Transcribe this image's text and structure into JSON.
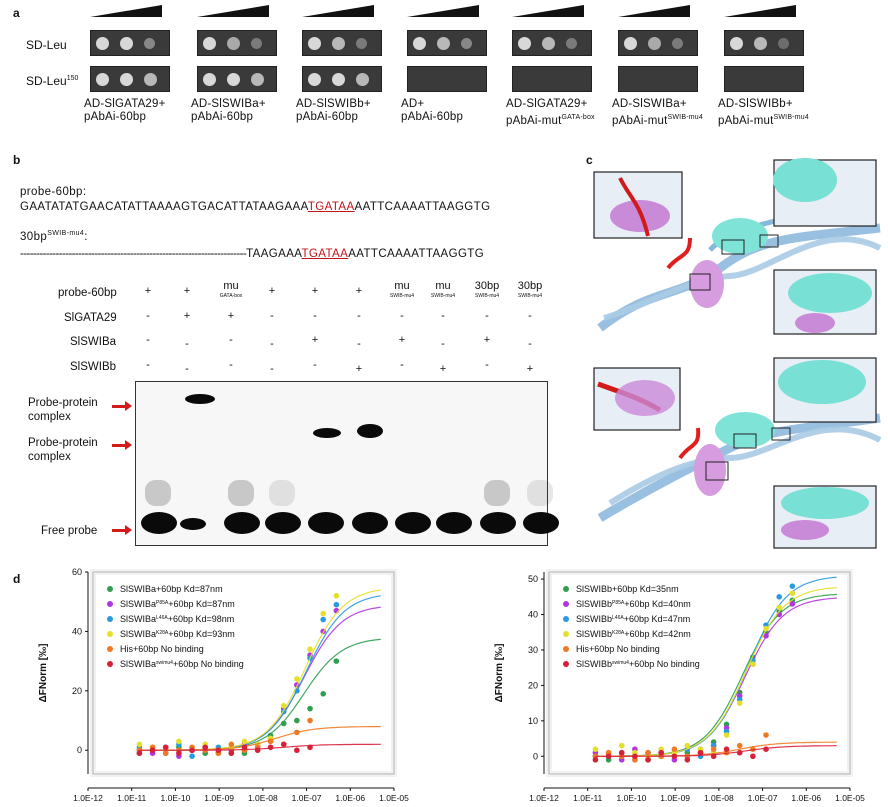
{
  "panel_a": {
    "letter": "a",
    "rows": [
      "SD-Leu",
      "SD-Leu"
    ],
    "row2_sup": "150",
    "columns": [
      {
        "line1": "AD-SlGATA29+",
        "line2": "pAbAi-60bp",
        "sup": ""
      },
      {
        "line1": "AD-SlSWIBa+",
        "line2": "pAbAi-60bp",
        "sup": ""
      },
      {
        "line1": "AD-SlSWIBb+",
        "line2": "pAbAi-60bp",
        "sup": ""
      },
      {
        "line1": "AD+",
        "line2": "pAbAi-60bp",
        "sup": ""
      },
      {
        "line1": "AD-SlGATA29+",
        "line2": "pAbAi-mut",
        "sup": "GATA-box"
      },
      {
        "line1": "AD-SlSWIBa+",
        "line2": "pAbAi-mut",
        "sup": "SWIB-mu4"
      },
      {
        "line1": "AD-SlSWIBb+",
        "line2": "pAbAi-mut",
        "sup": "SWIB-mu4"
      }
    ]
  },
  "panel_b": {
    "letter": "b",
    "probe_label": "probe-60bp:",
    "probe_seq_pre": "GAATATATGAACATATTAAAAGTGACATTATAAGAAA",
    "probe_seq_motif": "TGATAA",
    "probe_seq_post": "AATTCAAAATTAAGGTG",
    "probe2_label_base": "30bp",
    "probe2_label_sup": "SWIB-mu4",
    "probe2_label_end": ":",
    "probe2_dashes": "----------------------------------------------------------------------",
    "probe2_seq_pre": "TAAGAAA",
    "probe2_seq_motif": "TGATAA",
    "probe2_seq_post": "AATTCAAAATTAAGGTG",
    "emsa_rows": [
      "probe-60bp",
      "SlGATA29",
      "SlSWIBa",
      "SlSWIBb"
    ],
    "lane_headers": [
      {
        "main": "+",
        "sub": ""
      },
      {
        "main": "+",
        "sub": ""
      },
      {
        "main": "mu",
        "sub": "GATA-box"
      },
      {
        "main": "+",
        "sub": ""
      },
      {
        "main": "+",
        "sub": ""
      },
      {
        "main": "+",
        "sub": ""
      },
      {
        "main": "mu",
        "sub": "SWIB-mu4"
      },
      {
        "main": "mu",
        "sub": "SWIB-mu4"
      },
      {
        "main": "30bp",
        "sub": "SWIB-mu4"
      },
      {
        "main": "30bp",
        "sub": "SWIB-mu4"
      }
    ],
    "gata29_signs": [
      "-",
      "+",
      "+",
      "-",
      "-",
      "-",
      "-",
      "-",
      "-",
      "-"
    ],
    "swiba_signs": [
      "-",
      "-",
      "-",
      "-",
      "+",
      "-",
      "+",
      "-",
      "+",
      "-"
    ],
    "swibb_signs": [
      "-",
      "-",
      "-",
      "-",
      "-",
      "+",
      "-",
      "+",
      "-",
      "+"
    ],
    "band_labels": {
      "complex1_line1": "Probe-protein",
      "complex1_line2": "complex",
      "complex2_line1": "Probe-protein",
      "complex2_line2": "complex",
      "free": "Free probe"
    }
  },
  "panel_c": {
    "letter": "c"
  },
  "panel_d": {
    "letter": "d"
  },
  "colors": {
    "green": "#2e9e4f",
    "purple": "#b236e0",
    "blue": "#2a9ae0",
    "yellow": "#e4df2a",
    "orange": "#f07a24",
    "red": "#d8203a",
    "arrow": "#d31b1b"
  },
  "chart_data": [
    {
      "type": "scatter",
      "ylabel": "ΔFNorm [‰]",
      "xlabel": "Ligand Concentration",
      "x_scale": "log",
      "xlim": [
        1e-12,
        1e-05
      ],
      "ylim": [
        -8,
        60
      ],
      "x_ticks": [
        "1.0E-12",
        "1.0E-11",
        "1.0E-10",
        "1.0E-09",
        "1.0E-08",
        "1.0E-07",
        "1.0E-06",
        "1.0E-05"
      ],
      "y_ticks": [
        "0",
        "20",
        "40",
        "60"
      ],
      "legend_position": "top-left",
      "series": [
        {
          "label_pre": "SlSWIBa+60bp Kd=87nm",
          "label_sup": "",
          "label_post": "",
          "color": "green",
          "plateau": 38,
          "kd": 8.7e-08,
          "x": [
            1.5e-11,
            3e-11,
            6e-11,
            1.2e-10,
            2.4e-10,
            4.8e-10,
            9.6e-10,
            1.9e-09,
            3.8e-09,
            7.6e-09,
            1.5e-08,
            3e-08,
            6e-08,
            1.2e-07,
            2.4e-07,
            4.8e-07
          ],
          "y": [
            -1,
            0,
            -1,
            1,
            0,
            -1,
            0,
            1,
            -1,
            2,
            5,
            9,
            10,
            14,
            19,
            30
          ]
        },
        {
          "label_pre": "SlSWIBa",
          "label_sup": "P85A",
          "label_post": "+60bp Kd=87nm",
          "color": "purple",
          "plateau": 49,
          "kd": 8.7e-08,
          "x": [
            1.5e-11,
            3e-11,
            6e-11,
            1.2e-10,
            2.4e-10,
            4.8e-10,
            9.6e-10,
            1.9e-09,
            3.8e-09,
            7.6e-09,
            1.5e-08,
            3e-08,
            6e-08,
            1.2e-07,
            2.4e-07,
            4.8e-07
          ],
          "y": [
            0,
            -1,
            1,
            -2,
            0,
            1,
            -1,
            0,
            2,
            1,
            4,
            14,
            22,
            32,
            40,
            47
          ]
        },
        {
          "label_pre": "SlSWIBa",
          "label_sup": "L46A",
          "label_post": "+60bp Kd=98nm",
          "color": "blue",
          "plateau": 53,
          "kd": 9.8e-08,
          "x": [
            1.5e-11,
            3e-11,
            6e-11,
            1.2e-10,
            2.4e-10,
            4.8e-10,
            9.6e-10,
            1.9e-09,
            3.8e-09,
            7.6e-09,
            1.5e-08,
            3e-08,
            6e-08,
            1.2e-07,
            2.4e-07,
            4.8e-07
          ],
          "y": [
            1,
            0,
            -1,
            2,
            -2,
            0,
            1,
            -1,
            0,
            2,
            3,
            13,
            20,
            31,
            44,
            49
          ]
        },
        {
          "label_pre": "SlSWIBa",
          "label_sup": "K28A",
          "label_post": "+60bp Kd=93nm",
          "color": "yellow",
          "plateau": 55,
          "kd": 9.3e-08,
          "x": [
            1.5e-11,
            3e-11,
            6e-11,
            1.2e-10,
            2.4e-10,
            4.8e-10,
            9.6e-10,
            1.9e-09,
            3.8e-09,
            7.6e-09,
            1.5e-08,
            3e-08,
            6e-08,
            1.2e-07,
            2.4e-07,
            4.8e-07
          ],
          "y": [
            2,
            1,
            0,
            3,
            1,
            2,
            0,
            1,
            3,
            2,
            4,
            15,
            24,
            34,
            46,
            52
          ]
        },
        {
          "label_pre": "His+60bp No binding",
          "label_sup": "",
          "label_post": "",
          "color": "orange",
          "plateau": 8,
          "kd": 2e-08,
          "x": [
            1.5e-11,
            3e-11,
            6e-11,
            1.2e-10,
            2.4e-10,
            4.8e-10,
            9.6e-10,
            1.9e-09,
            3.8e-09,
            7.6e-09,
            1.5e-08,
            3e-08,
            6e-08,
            1.2e-07
          ],
          "y": [
            0,
            1,
            -1,
            0,
            1,
            0,
            -1,
            2,
            0,
            1,
            3,
            2,
            6,
            10
          ]
        },
        {
          "label_pre": "SlSWIBa",
          "label_sup": "swimu4",
          "label_post": "+60bp No binding",
          "color": "red",
          "plateau": 2,
          "kd": 3e-08,
          "x": [
            1.5e-11,
            3e-11,
            6e-11,
            1.2e-10,
            2.4e-10,
            4.8e-10,
            9.6e-10,
            1.9e-09,
            3.8e-09,
            7.6e-09,
            1.5e-08,
            3e-08,
            6e-08,
            1.2e-07
          ],
          "y": [
            -1,
            0,
            1,
            -1,
            0,
            1,
            0,
            -1,
            1,
            0,
            1,
            2,
            0,
            1
          ]
        }
      ]
    },
    {
      "type": "scatter",
      "ylabel": "ΔFNorm [‰]",
      "xlabel": "Ligand Concentration",
      "x_scale": "log",
      "xlim": [
        1e-12,
        1e-05
      ],
      "ylim": [
        -5,
        52
      ],
      "x_ticks": [
        "1.0E-12",
        "1.0E-11",
        "1.0E-10",
        "1.0E-09",
        "1.0E-08",
        "1.0E-07",
        "1.0E-06",
        "1.0E-05"
      ],
      "y_ticks": [
        "0",
        "10",
        "20",
        "30",
        "40",
        "50"
      ],
      "legend_position": "top-left",
      "series": [
        {
          "label_pre": "SlSWIBb+60bp Kd=35nm",
          "label_sup": "",
          "label_post": "",
          "color": "green",
          "plateau": 46,
          "kd": 3.5e-08,
          "x": [
            1.5e-11,
            3e-11,
            6e-11,
            1.2e-10,
            2.4e-10,
            4.8e-10,
            9.6e-10,
            1.9e-09,
            3.8e-09,
            7.6e-09,
            1.5e-08,
            3e-08,
            6e-08,
            1.2e-07,
            2.4e-07,
            4.8e-07
          ],
          "y": [
            0,
            -1,
            1,
            0,
            -1,
            1,
            0,
            1,
            2,
            4,
            9,
            18,
            28,
            35,
            41,
            44
          ]
        },
        {
          "label_pre": "SlSWIBb",
          "label_sup": "P85A",
          "label_post": "+60bp Kd=40nm",
          "color": "purple",
          "plateau": 45,
          "kd": 4e-08,
          "x": [
            1.5e-11,
            3e-11,
            6e-11,
            1.2e-10,
            2.4e-10,
            4.8e-10,
            9.6e-10,
            1.9e-09,
            3.8e-09,
            7.6e-09,
            1.5e-08,
            3e-08,
            6e-08,
            1.2e-07,
            2.4e-07,
            4.8e-07
          ],
          "y": [
            1,
            0,
            -1,
            2,
            0,
            1,
            -1,
            0,
            1,
            3,
            8,
            17,
            26,
            34,
            40,
            43
          ]
        },
        {
          "label_pre": "SlSWIBb",
          "label_sup": "L46A",
          "label_post": "+60bp Kd=47nm",
          "color": "blue",
          "plateau": 51,
          "kd": 4.7e-08,
          "x": [
            1.5e-11,
            3e-11,
            6e-11,
            1.2e-10,
            2.4e-10,
            4.8e-10,
            9.6e-10,
            1.9e-09,
            3.8e-09,
            7.6e-09,
            1.5e-08,
            3e-08,
            6e-08,
            1.2e-07,
            2.4e-07,
            4.8e-07
          ],
          "y": [
            0,
            1,
            0,
            -1,
            1,
            0,
            1,
            2,
            0,
            3,
            7,
            16,
            27,
            37,
            45,
            48
          ]
        },
        {
          "label_pre": "SlSWIBb",
          "label_sup": "K28A",
          "label_post": "+60bp Kd=42nm",
          "color": "yellow",
          "plateau": 48,
          "kd": 4.2e-08,
          "x": [
            1.5e-11,
            3e-11,
            6e-11,
            1.2e-10,
            2.4e-10,
            4.8e-10,
            9.6e-10,
            1.9e-09,
            3.8e-09,
            7.6e-09,
            1.5e-08,
            3e-08,
            6e-08,
            1.2e-07,
            2.4e-07,
            4.8e-07
          ],
          "y": [
            2,
            1,
            3,
            1,
            0,
            2,
            1,
            3,
            2,
            1,
            6,
            15,
            26,
            36,
            42,
            46
          ]
        },
        {
          "label_pre": "His+60bp No binding",
          "label_sup": "",
          "label_post": "",
          "color": "orange",
          "plateau": 4,
          "kd": 3e-08,
          "x": [
            1.5e-11,
            3e-11,
            6e-11,
            1.2e-10,
            2.4e-10,
            4.8e-10,
            9.6e-10,
            1.9e-09,
            3.8e-09,
            7.6e-09,
            1.5e-08,
            3e-08,
            6e-08,
            1.2e-07
          ],
          "y": [
            0,
            1,
            0,
            -1,
            1,
            0,
            2,
            0,
            1,
            2,
            1,
            3,
            2,
            6
          ]
        },
        {
          "label_pre": "SlSWIBb",
          "label_sup": "swimu4",
          "label_post": "+60bp No binding",
          "color": "red",
          "plateau": 3,
          "kd": 4e-08,
          "x": [
            1.5e-11,
            3e-11,
            6e-11,
            1.2e-10,
            2.4e-10,
            4.8e-10,
            9.6e-10,
            1.9e-09,
            3.8e-09,
            7.6e-09,
            1.5e-08,
            3e-08,
            6e-08,
            1.2e-07
          ],
          "y": [
            -1,
            0,
            1,
            0,
            -1,
            1,
            0,
            -1,
            1,
            0,
            2,
            1,
            0,
            2
          ]
        }
      ]
    }
  ]
}
